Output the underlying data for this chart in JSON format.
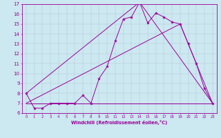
{
  "xlabel": "Windchill (Refroidissement éolien,°C)",
  "xlim": [
    -0.5,
    23.5
  ],
  "ylim": [
    6,
    17
  ],
  "yticks": [
    6,
    7,
    8,
    9,
    10,
    11,
    12,
    13,
    14,
    15,
    16,
    17
  ],
  "xticks": [
    0,
    1,
    2,
    3,
    4,
    5,
    6,
    7,
    8,
    9,
    10,
    11,
    12,
    13,
    14,
    15,
    16,
    17,
    18,
    19,
    20,
    21,
    22,
    23
  ],
  "bg_color": "#cce8f0",
  "line_color": "#990099",
  "line1_x": [
    0,
    1,
    2,
    3,
    4,
    5,
    6,
    7,
    8,
    9,
    10,
    11,
    12,
    13,
    14,
    15,
    16,
    17,
    18,
    19,
    20,
    21,
    22,
    23
  ],
  "line1_y": [
    8,
    6.5,
    6.5,
    7,
    7,
    7,
    7,
    7.8,
    7,
    9.5,
    10.7,
    13.3,
    15.5,
    15.7,
    17.2,
    15.1,
    16.1,
    15.7,
    15.2,
    15,
    13,
    11,
    8.5,
    7
  ],
  "line2_x": [
    0,
    23
  ],
  "line2_y": [
    7,
    7
  ],
  "line3_x": [
    0,
    19,
    23
  ],
  "line3_y": [
    7,
    15,
    7
  ],
  "line4_x": [
    0,
    14,
    23
  ],
  "line4_y": [
    8,
    17.2,
    7
  ]
}
